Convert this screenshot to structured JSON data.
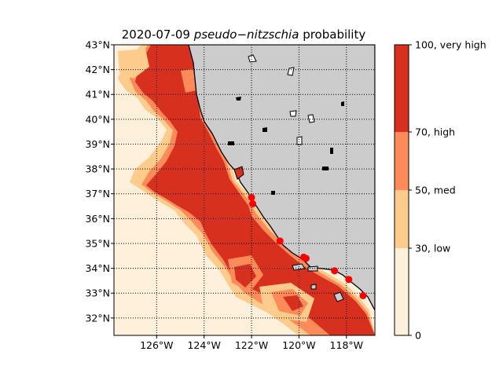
{
  "chart_data": {
    "type": "heatmap",
    "title": {
      "prefix": "2020-07-09 ",
      "italic": "pseudo−nitzschia",
      "suffix": " probability"
    },
    "xlabel": "",
    "ylabel": "",
    "xlim": [
      -127.8,
      -116.8
    ],
    "ylim": [
      31.3,
      43.0
    ],
    "x_ticks": [
      {
        "value": -126,
        "label": "126°W"
      },
      {
        "value": -124,
        "label": "124°W"
      },
      {
        "value": -122,
        "label": "122°W"
      },
      {
        "value": -120,
        "label": "120°W"
      },
      {
        "value": -118,
        "label": "118°W"
      }
    ],
    "y_ticks": [
      {
        "value": 32,
        "label": "32°N"
      },
      {
        "value": 33,
        "label": "33°N"
      },
      {
        "value": 34,
        "label": "34°N"
      },
      {
        "value": 35,
        "label": "35°N"
      },
      {
        "value": 36,
        "label": "36°N"
      },
      {
        "value": 37,
        "label": "37°N"
      },
      {
        "value": 38,
        "label": "38°N"
      },
      {
        "value": 39,
        "label": "39°N"
      },
      {
        "value": 40,
        "label": "40°N"
      },
      {
        "value": 41,
        "label": "41°N"
      },
      {
        "value": 42,
        "label": "42°N"
      },
      {
        "value": 43,
        "label": "43°N"
      }
    ],
    "grid": true,
    "land_color": "#cccccc",
    "colorbar": {
      "range": [
        0,
        100
      ],
      "levels": [
        {
          "from": 0,
          "to": 30,
          "color": "#fff0dc"
        },
        {
          "from": 30,
          "to": 50,
          "color": "#fdcb8c"
        },
        {
          "from": 50,
          "to": 70,
          "color": "#fc8b59"
        },
        {
          "from": 70,
          "to": 100,
          "color": "#d7301f"
        }
      ],
      "ticks": [
        {
          "value": 0,
          "label": "0"
        },
        {
          "value": 30,
          "label": "30, low"
        },
        {
          "value": 50,
          "label": "50, med"
        },
        {
          "value": 70,
          "label": "70, high"
        },
        {
          "value": 100,
          "label": "100, very high"
        }
      ]
    },
    "observation_points": {
      "color": "#ff0000",
      "points": [
        {
          "lon": -122.0,
          "lat": 36.85
        },
        {
          "lon": -121.95,
          "lat": 36.6
        },
        {
          "lon": -120.8,
          "lat": 35.1
        },
        {
          "lon": -119.8,
          "lat": 34.45
        },
        {
          "lon": -119.7,
          "lat": 34.4
        },
        {
          "lon": -118.5,
          "lat": 33.9
        },
        {
          "lon": -117.9,
          "lat": 33.55
        },
        {
          "lon": -117.3,
          "lat": 32.9
        }
      ]
    }
  }
}
